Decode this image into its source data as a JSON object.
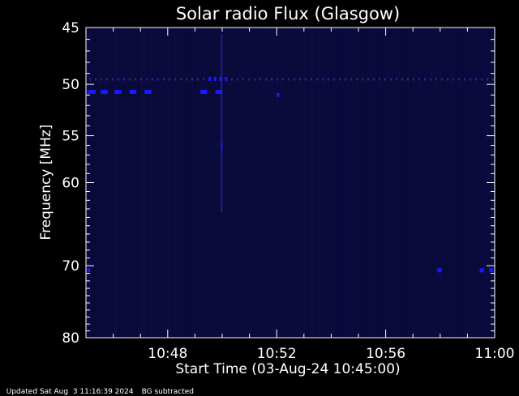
{
  "chart_data": {
    "type": "heatmap",
    "title": "Solar radio Flux (Glasgow)",
    "xlabel": "Start Time (03-Aug-24 10:45:00)",
    "ylabel": "Frequency [MHz]",
    "x_range_minutes": [
      0,
      15
    ],
    "x_ticks": [
      {
        "minute": 3,
        "label": "10:48"
      },
      {
        "minute": 7,
        "label": "10:52"
      },
      {
        "minute": 11,
        "label": "10:56"
      },
      {
        "minute": 15,
        "label": "11:00"
      }
    ],
    "y_scale": "log",
    "ylim": [
      45,
      80
    ],
    "y_ticks": [
      {
        "value": 45,
        "label": "45"
      },
      {
        "value": 50,
        "label": "50"
      },
      {
        "value": 55,
        "label": "55"
      },
      {
        "value": 60,
        "label": "60"
      },
      {
        "value": 70,
        "label": "70"
      },
      {
        "value": 80,
        "label": "80"
      }
    ],
    "colors": {
      "background": "#000000",
      "field": "#0a0a3a",
      "signal": "#1a1aff",
      "axes": "#ffffff"
    },
    "bright_spots": [
      {
        "minute_start": 0.05,
        "minute_end": 0.35,
        "freq": 50.7
      },
      {
        "minute_start": 0.55,
        "minute_end": 0.8,
        "freq": 50.7
      },
      {
        "minute_start": 1.05,
        "minute_end": 1.3,
        "freq": 50.7
      },
      {
        "minute_start": 1.6,
        "minute_end": 1.85,
        "freq": 50.7
      },
      {
        "minute_start": 2.15,
        "minute_end": 2.4,
        "freq": 50.7
      },
      {
        "minute_start": 4.2,
        "minute_end": 4.45,
        "freq": 50.7
      },
      {
        "minute_start": 4.75,
        "minute_end": 5.0,
        "freq": 50.7
      },
      {
        "minute_start": 7.0,
        "minute_end": 7.1,
        "freq": 51.0
      },
      {
        "minute_start": 4.5,
        "minute_end": 4.55,
        "freq": 49.5
      },
      {
        "minute_start": 4.7,
        "minute_end": 4.75,
        "freq": 49.5
      },
      {
        "minute_start": 4.9,
        "minute_end": 4.95,
        "freq": 49.5
      },
      {
        "minute_start": 5.1,
        "minute_end": 5.15,
        "freq": 49.5
      },
      {
        "minute_start": 0.05,
        "minute_end": 0.15,
        "freq": 70.6
      },
      {
        "minute_start": 12.9,
        "minute_end": 13.05,
        "freq": 70.6
      },
      {
        "minute_start": 14.45,
        "minute_end": 14.6,
        "freq": 70.6
      },
      {
        "minute_start": 14.8,
        "minute_end": 14.95,
        "freq": 70.6
      }
    ],
    "burst_minute": 4.95
  },
  "footer": {
    "updated": "Updated Sat Aug  3 11:16:39 2024",
    "note": "BG subtracted"
  }
}
